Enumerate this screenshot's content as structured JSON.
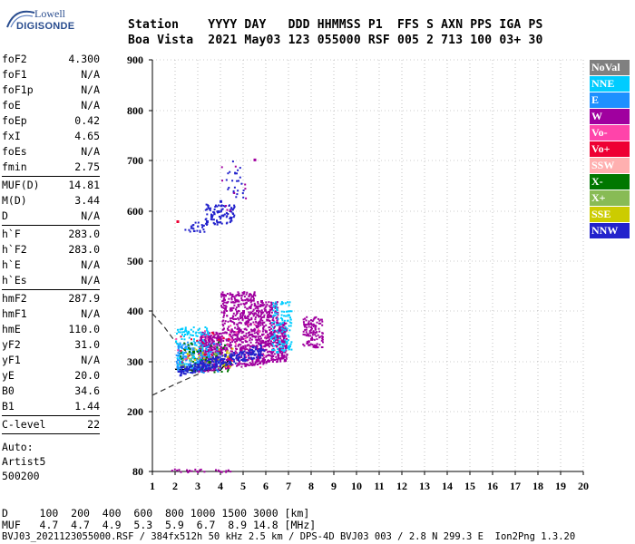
{
  "logo": {
    "line1": "Lowell",
    "line2": "DIGISONDE"
  },
  "header": {
    "line1": "Station    YYYY DAY   DDD HHMMSS P1  FFS S AXN PPS IGA PS",
    "line2": "Boa Vista  2021 May03 123 055000 RSF 005 2 713 100 03+ 30"
  },
  "params": {
    "group1": [
      {
        "label": "foF2",
        "value": "4.300"
      },
      {
        "label": "foF1",
        "value": "N/A"
      },
      {
        "label": "foF1p",
        "value": "N/A"
      },
      {
        "label": "foE",
        "value": "N/A"
      },
      {
        "label": "foEp",
        "value": "0.42"
      },
      {
        "label": "fxI",
        "value": "4.65"
      },
      {
        "label": "foEs",
        "value": "N/A"
      },
      {
        "label": "fmin",
        "value": "2.75"
      }
    ],
    "group2": [
      {
        "label": "MUF(D)",
        "value": "14.81"
      },
      {
        "label": "M(D)",
        "value": "3.44"
      },
      {
        "label": "D",
        "value": "N/A"
      }
    ],
    "group3": [
      {
        "label": "h`F",
        "value": "283.0"
      },
      {
        "label": "h`F2",
        "value": "283.0"
      },
      {
        "label": "h`E",
        "value": "N/A"
      },
      {
        "label": "h`Es",
        "value": "N/A"
      }
    ],
    "group4": [
      {
        "label": "hmF2",
        "value": "287.9"
      },
      {
        "label": "hmF1",
        "value": "N/A"
      },
      {
        "label": "hmE",
        "value": "110.0"
      },
      {
        "label": "yF2",
        "value": "31.0"
      },
      {
        "label": "yF1",
        "value": "N/A"
      },
      {
        "label": "yE",
        "value": "20.0"
      },
      {
        "label": "B0",
        "value": "34.6"
      },
      {
        "label": "B1",
        "value": "1.44"
      }
    ],
    "clevel": {
      "label": "C-level",
      "value": "22"
    },
    "auto": [
      "Auto:",
      "Artist5",
      "500200"
    ]
  },
  "legend": [
    {
      "label": "NoVal",
      "color": "#808080"
    },
    {
      "label": "NNE",
      "color": "#00ccff"
    },
    {
      "label": "E",
      "color": "#1e90ff"
    },
    {
      "label": "W",
      "color": "#a0009f"
    },
    {
      "label": "Vo-",
      "color": "#ff44aa"
    },
    {
      "label": "Vo+",
      "color": "#ee0033"
    },
    {
      "label": "SSW",
      "color": "#ffb0b0"
    },
    {
      "label": "X-",
      "color": "#007700"
    },
    {
      "label": "X+",
      "color": "#88bb55"
    },
    {
      "label": "SSE",
      "color": "#cccc00"
    },
    {
      "label": "NNW",
      "color": "#2222cc"
    }
  ],
  "bottom": {
    "line1": "D     100  200  400  600  800 1000 1500 3000 [km]",
    "line2": "MUF   4.7  4.7  4.9  5.3  5.9  6.7  8.9 14.8 [MHz]",
    "line3": "BVJ03_2021123055000.RSF / 384fx512h 50 kHz 2.5 km / DPS-4D BVJ03 003 / 2.8 N 299.3 E  Ion2Png 1.3.20"
  },
  "chart_data": {
    "type": "scatter",
    "title": "",
    "xlabel": "",
    "ylabel": "",
    "xlim": [
      1,
      20
    ],
    "ylim": [
      80,
      900
    ],
    "x_ticks": [
      "1",
      "2",
      "3",
      "4",
      "5",
      "6",
      "7",
      "8",
      "9",
      "10",
      "11",
      "12",
      "13",
      "14",
      "15",
      "16",
      "17",
      "18",
      "19",
      "20"
    ],
    "y_ticks": [
      "80",
      "200",
      "300",
      "400",
      "500",
      "600",
      "700",
      "800",
      "900"
    ],
    "series": [
      {
        "name": "W",
        "color": "#a0009f",
        "points": [
          [
            5.2,
            380
          ],
          [
            5.6,
            370
          ],
          [
            6.0,
            360
          ],
          [
            5.0,
            400
          ],
          [
            5.8,
            420
          ],
          [
            6.2,
            390
          ],
          [
            4.8,
            360
          ],
          [
            6.5,
            350
          ],
          [
            5.4,
            430
          ],
          [
            6.8,
            340
          ],
          [
            8.0,
            345
          ],
          [
            8.2,
            330
          ],
          [
            5.5,
            702
          ]
        ]
      },
      {
        "name": "NNW",
        "color": "#2222cc",
        "points": [
          [
            2.5,
            285
          ],
          [
            3.2,
            290
          ],
          [
            3.8,
            295
          ],
          [
            4.4,
            300
          ],
          [
            5.0,
            305
          ],
          [
            5.5,
            315
          ],
          [
            3.6,
            590
          ],
          [
            3.9,
            600
          ],
          [
            4.0,
            620
          ],
          [
            3.4,
            580
          ]
        ]
      },
      {
        "name": "NNE",
        "color": "#00ccff",
        "points": [
          [
            2.2,
            300
          ],
          [
            2.8,
            310
          ],
          [
            6.9,
            340
          ],
          [
            7.0,
            330
          ],
          [
            6.5,
            320
          ]
        ]
      },
      {
        "name": "E",
        "color": "#1e90ff",
        "points": [
          [
            2.1,
            290
          ],
          [
            2.6,
            295
          ],
          [
            3.0,
            300
          ]
        ]
      },
      {
        "name": "Vo+",
        "color": "#ee0033",
        "points": [
          [
            2.1,
            580
          ],
          [
            3.3,
            315
          ]
        ]
      },
      {
        "name": "X-",
        "color": "#007700",
        "points": [
          [
            2.8,
            320
          ],
          [
            3.5,
            300
          ]
        ]
      }
    ]
  }
}
